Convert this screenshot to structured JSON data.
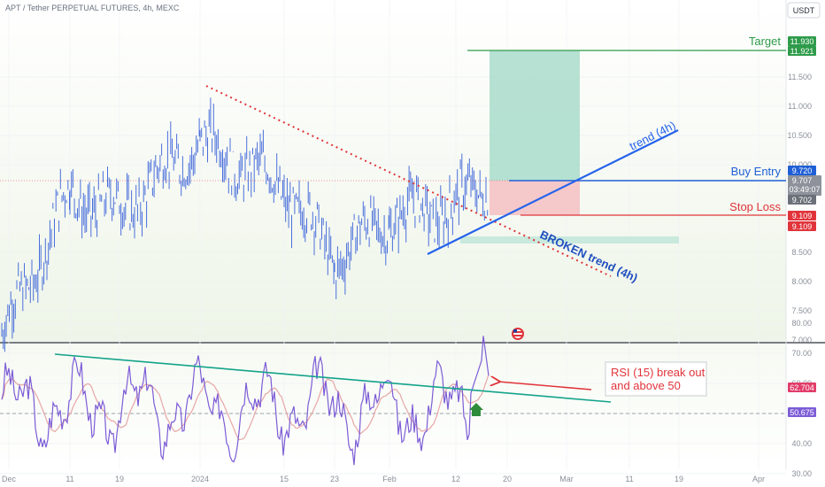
{
  "header": {
    "title": "APT / Tether PERPETUAL FUTURES, 4h, MEXC",
    "currency": "USDT"
  },
  "colors": {
    "candle": "#4a6fdc",
    "target": "#2e9b4a",
    "entry": "#1f5fd6",
    "stop": "#e0343a",
    "trend": "#2563eb",
    "broken": "#e0343a",
    "rsi": "#7c5cd6",
    "rsi_ma": "#e7a6a6",
    "rsi_trend": "#14a38b",
    "profit_zone": "#a9dccb",
    "loss_zone": "#f4c0c3",
    "arrow_up": "#2e8b3a"
  },
  "annotations": {
    "target": "Target",
    "buy_entry": "Buy Entry",
    "stop_loss": "Stop Loss",
    "trend": "trend (4h)",
    "broken_trend": "BROKEN trend (4h)",
    "rsi_note_line1": "RSI (15) break out",
    "rsi_note_line2": "and above 50"
  },
  "price_badges": {
    "target_a": "11.930",
    "target_b": "11.921",
    "entry": "9.720",
    "last": "9.707",
    "countdown": "03:49:07",
    "entry_b": "9.702",
    "stop_a": "9.109",
    "stop_b": "9.109"
  },
  "rsi_badges": {
    "rsi": "62.704",
    "rsi_ma": "50.675"
  },
  "chart_data": [
    {
      "type": "candlestick",
      "title": "APT / Tether PERPETUAL FUTURES, 4h, MEXC",
      "y_ticks": [
        "11.500",
        "11.000",
        "10.500",
        "10.000",
        "8.500",
        "8.000",
        "7.500",
        "7.000"
      ],
      "y_range": [
        7.0,
        12.0
      ],
      "x_ticks": [
        "Dec",
        "11",
        "19",
        "2024",
        "15",
        "23",
        "Feb",
        "12",
        "20",
        "Mar",
        "11",
        "19",
        "Apr"
      ],
      "approx_close_path": [
        [
          "Dec",
          7.05
        ],
        [
          "11",
          9.5
        ],
        [
          "19",
          9.2
        ],
        [
          "2024",
          10.4
        ],
        [
          "15",
          9.6
        ],
        [
          "23",
          8.4
        ],
        [
          "Feb",
          9.1
        ],
        [
          "12",
          9.3
        ],
        [
          "Feb 15",
          9.707
        ]
      ],
      "levels": {
        "target": 11.921,
        "buy_entry": 9.72,
        "stop_loss": 9.109
      },
      "grid": true
    },
    {
      "type": "line",
      "title": "RSI (15)",
      "y_ticks": [
        "80.00",
        "70.00",
        "60.00",
        "50.00",
        "40.00",
        "30.00"
      ],
      "y_range": [
        25,
        85
      ],
      "series": [
        {
          "name": "RSI",
          "last": 62.704
        },
        {
          "name": "RSI MA",
          "last": 50.675
        }
      ],
      "reference": 50
    }
  ]
}
